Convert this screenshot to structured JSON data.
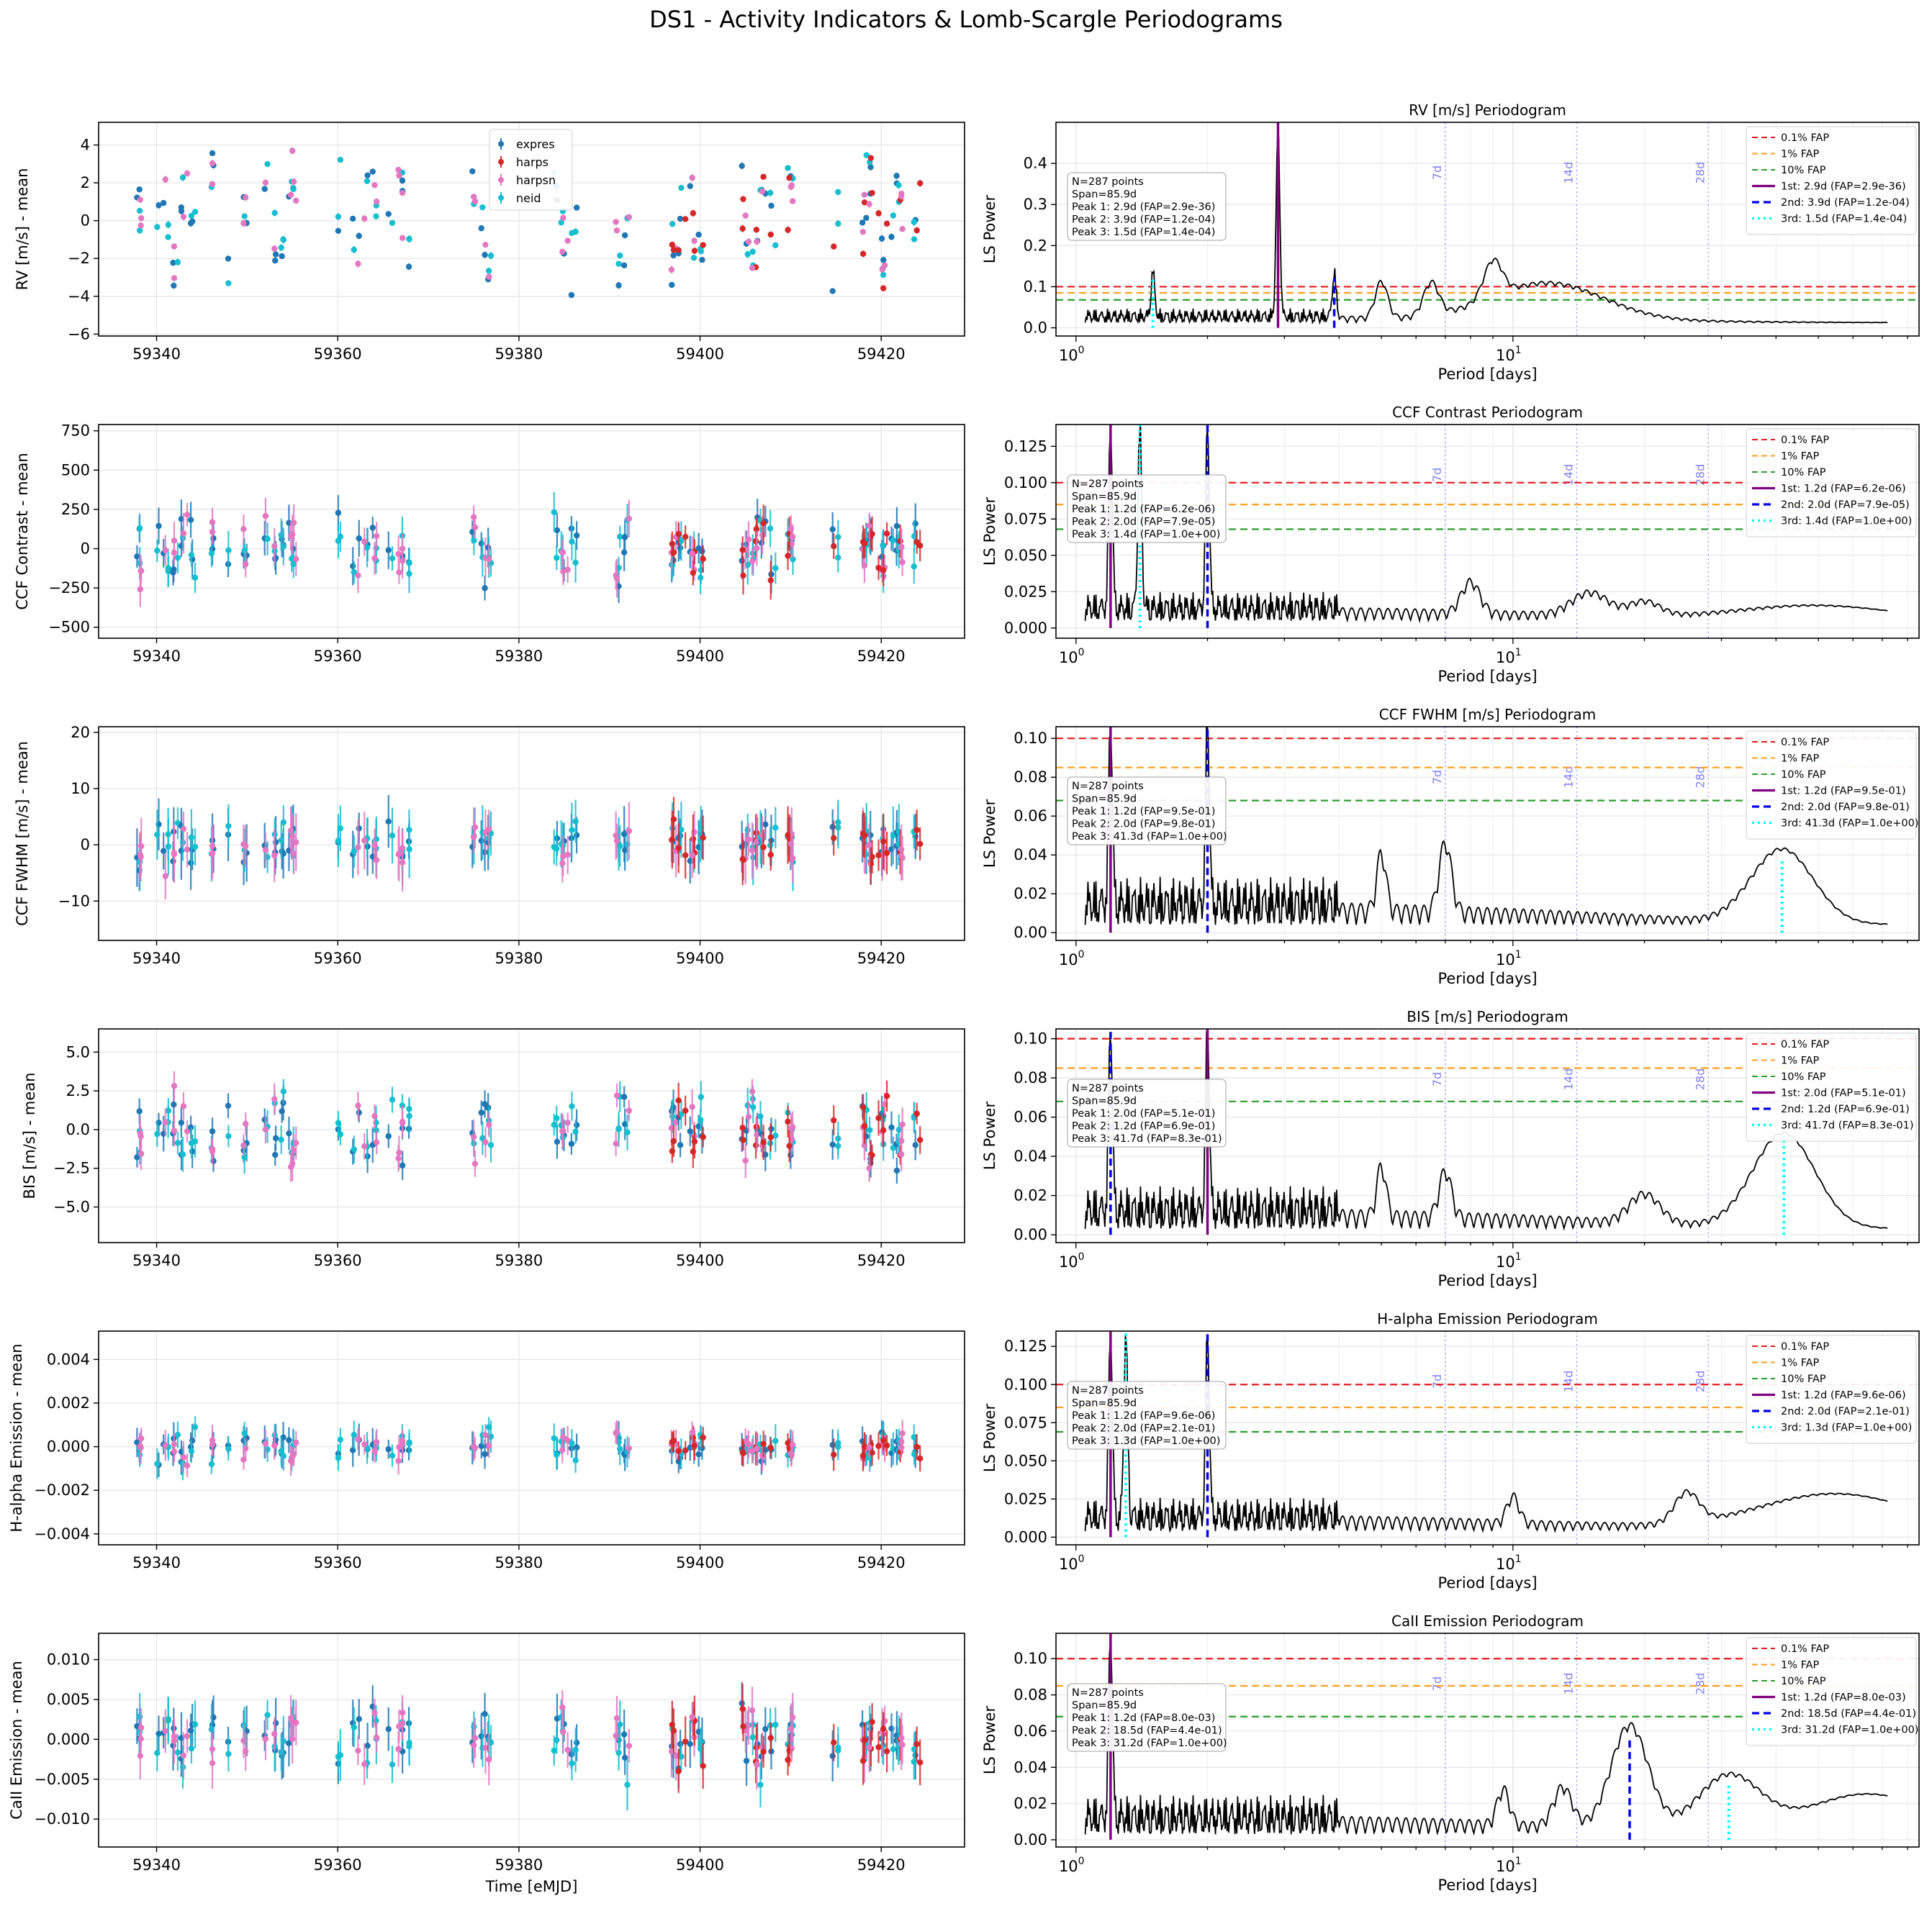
{
  "figure": {
    "title": "DS1 - Activity Indicators & Lomb-Scargle Periodograms"
  },
  "colors": {
    "expres": "#1f77b4",
    "harps": "#d62728",
    "harpsn": "#e377c2",
    "neid": "#17becf",
    "fap01": "#e41a1c",
    "fap1": "#ff9f1c",
    "fap10": "#2a9d2a",
    "peak1": "#800080",
    "peak2": "#0000ee",
    "peak3": "#00ffff",
    "harm": "#8080ff"
  },
  "time_axis": {
    "xlabel": "Time [eMJD]",
    "xlim": [
      59333.6,
      59429.2
    ],
    "ticks": [
      59340,
      59360,
      59380,
      59400,
      59420
    ],
    "tick_labels": [
      "59340",
      "59360",
      "59380",
      "59400",
      "59420"
    ]
  },
  "legend": {
    "entries": [
      {
        "label": "expres",
        "color_key": "expres"
      },
      {
        "label": "harps",
        "color_key": "harps"
      },
      {
        "label": "harpsn",
        "color_key": "harpsn"
      },
      {
        "label": "neid",
        "color_key": "neid"
      }
    ]
  },
  "periodogram_axis": {
    "xlabel": "Period [days]",
    "ylabel": "LS Power",
    "xlim": [
      0.9,
      85.0
    ],
    "scale": "log",
    "tick_labels": [
      "10^0",
      "10^1"
    ],
    "tick_text": {
      "base": "10",
      "exps": [
        "0",
        "1"
      ]
    },
    "harmonics": [
      7,
      14,
      28
    ],
    "harmonic_labels": [
      "7d",
      "14d",
      "28d"
    ]
  },
  "fap_labels": [
    "0.1% FAP",
    "1% FAP",
    "10% FAP"
  ],
  "chart_data": [
    {
      "type": "scatter",
      "ylabel": "RV [m/s] - mean",
      "ylim": [
        -6.1,
        5.2
      ],
      "yticks": [
        -6,
        -4,
        -2,
        0,
        2,
        4
      ],
      "ytick_labels": [
        "−6",
        "−4",
        "−2",
        "0",
        "2",
        "4"
      ],
      "amp": 2.2,
      "err": 0.15,
      "has_legend": true
    },
    {
      "type": "scatter",
      "ylabel": "CCF Contrast - mean",
      "ylim": [
        -570,
        790
      ],
      "yticks": [
        -500,
        -250,
        0,
        250,
        500,
        750
      ],
      "ytick_labels": [
        "−500",
        "−250",
        "0",
        "250",
        "500",
        "750"
      ],
      "amp": 150,
      "err": 100,
      "has_legend": false
    },
    {
      "type": "scatter",
      "ylabel": "CCF FWHM [m/s] - mean",
      "ylim": [
        -17,
        21
      ],
      "yticks": [
        -10,
        0,
        10,
        20
      ],
      "ytick_labels": [
        "−10",
        "0",
        "10",
        "20"
      ],
      "amp": 3,
      "err": 4,
      "has_legend": false
    },
    {
      "type": "scatter",
      "ylabel": "BIS [m/s] - mean",
      "ylim": [
        -7.3,
        6.5
      ],
      "yticks": [
        -5.0,
        -2.5,
        0.0,
        2.5,
        5.0
      ],
      "ytick_labels": [
        "−5.0",
        "−2.5",
        "0.0",
        "2.5",
        "5.0"
      ],
      "amp": 1.8,
      "err": 0.9,
      "has_legend": false
    },
    {
      "type": "scatter",
      "ylabel": "H-alpha Emission - mean",
      "ylim": [
        -0.0045,
        0.0053
      ],
      "yticks": [
        -0.004,
        -0.002,
        0.0,
        0.002,
        0.004
      ],
      "ytick_labels": [
        "−0.004",
        "−0.002",
        "0.000",
        "0.002",
        "0.004"
      ],
      "amp": 0.0005,
      "err": 0.0006,
      "has_legend": false
    },
    {
      "type": "scatter",
      "ylabel": "CaII Emission - mean",
      "ylim": [
        -0.0135,
        0.0133
      ],
      "yticks": [
        -0.01,
        -0.005,
        0.0,
        0.005,
        0.01
      ],
      "ytick_labels": [
        "−0.010",
        "−0.005",
        "0.000",
        "0.005",
        "0.010"
      ],
      "amp": 0.003,
      "err": 0.0025,
      "has_legend": false
    }
  ],
  "periodograms": [
    {
      "type": "line",
      "title": "RV [m/s] Periodogram",
      "ylim": [
        -0.02,
        0.5
      ],
      "yticks": [
        0.0,
        0.1,
        0.2,
        0.3,
        0.4
      ],
      "ytick_labels": [
        "0.0",
        "0.1",
        "0.2",
        "0.3",
        "0.4"
      ],
      "fap": [
        0.1,
        0.085,
        0.068
      ],
      "peaks": [
        {
          "period": 2.9,
          "power": 0.5
        },
        {
          "period": 3.9,
          "power": 0.12
        },
        {
          "period": 1.5,
          "power": 0.12
        }
      ],
      "info": [
        "N=287 points",
        "Span=85.9d",
        "Peak 1: 2.9d (FAP=2.9e-36)",
        "Peak 2: 3.9d (FAP=1.2e-04)",
        "Peak 3: 1.5d (FAP=1.4e-04)"
      ],
      "legend_peaks": [
        "1st: 2.9d (FAP=2.9e-36)",
        "2nd: 3.9d (FAP=1.2e-04)",
        "3rd: 1.5d (FAP=1.4e-04)"
      ],
      "base": 0.025,
      "noise": 0.035,
      "bumps": [
        {
          "period": 12.0,
          "power": 0.09,
          "width": 0.18
        },
        {
          "period": 9.0,
          "power": 0.09,
          "width": 0.03
        },
        {
          "period": 6.5,
          "power": 0.08,
          "width": 0.025
        },
        {
          "period": 5.0,
          "power": 0.09,
          "width": 0.02
        }
      ]
    },
    {
      "type": "line",
      "title": "CCF Contrast Periodogram",
      "ylim": [
        -0.007,
        0.14
      ],
      "yticks": [
        0.0,
        0.025,
        0.05,
        0.075,
        0.1,
        0.125
      ],
      "ytick_labels": [
        "0.000",
        "0.025",
        "0.050",
        "0.075",
        "0.100",
        "0.125"
      ],
      "fap": [
        0.1,
        0.085,
        0.068
      ],
      "peaks": [
        {
          "period": 1.2,
          "power": 0.14
        },
        {
          "period": 2.0,
          "power": 0.14
        },
        {
          "period": 1.4,
          "power": 0.14
        }
      ],
      "info": [
        "N=287 points",
        "Span=85.9d",
        "Peak 1: 1.2d (FAP=6.2e-06)",
        "Peak 2: 2.0d (FAP=7.9e-05)",
        "Peak 3: 1.4d (FAP=1.0e+00)"
      ],
      "legend_peaks": [
        "1st: 1.2d (FAP=6.2e-06)",
        "2nd: 2.0d (FAP=7.9e-05)",
        "3rd: 1.4d (FAP=1.0e+00)"
      ],
      "base": 0.01,
      "noise": 0.02,
      "bumps": [
        {
          "period": 8.0,
          "power": 0.022,
          "width": 0.03
        },
        {
          "period": 15.0,
          "power": 0.016,
          "width": 0.06
        },
        {
          "period": 20.0,
          "power": 0.01,
          "width": 0.05
        },
        {
          "period": 50.0,
          "power": 0.01,
          "width": 0.25
        }
      ]
    },
    {
      "type": "line",
      "title": "CCF FWHM [m/s] Periodogram",
      "ylim": [
        -0.004,
        0.106
      ],
      "yticks": [
        0.0,
        0.02,
        0.04,
        0.06,
        0.08,
        0.1
      ],
      "ytick_labels": [
        "0.00",
        "0.02",
        "0.04",
        "0.06",
        "0.08",
        "0.10"
      ],
      "fap": [
        0.1,
        0.085,
        0.068
      ],
      "peaks": [
        {
          "period": 1.2,
          "power": 0.106
        },
        {
          "period": 2.0,
          "power": 0.106
        },
        {
          "period": 41.3,
          "power": 0.038
        }
      ],
      "info": [
        "N=287 points",
        "Span=85.9d",
        "Peak 1: 1.2d (FAP=9.5e-01)",
        "Peak 2: 2.0d (FAP=9.8e-01)",
        "Peak 3: 41.3d (FAP=1.0e+00)"
      ],
      "legend_peaks": [
        "1st: 1.2d (FAP=9.5e-01)",
        "2nd: 2.0d (FAP=9.8e-01)",
        "3rd: 41.3d (FAP=1.0e+00)"
      ],
      "base": 0.008,
      "noise": 0.025,
      "bumps": [
        {
          "period": 41.3,
          "power": 0.038,
          "width": 0.1
        },
        {
          "period": 7.0,
          "power": 0.036,
          "width": 0.02
        },
        {
          "period": 5.0,
          "power": 0.03,
          "width": 0.015
        }
      ]
    },
    {
      "type": "line",
      "title": "BIS [m/s] Periodogram",
      "ylim": [
        -0.004,
        0.105
      ],
      "yticks": [
        0.0,
        0.02,
        0.04,
        0.06,
        0.08,
        0.1
      ],
      "ytick_labels": [
        "0.00",
        "0.02",
        "0.04",
        "0.06",
        "0.08",
        "0.10"
      ],
      "fap": [
        0.1,
        0.085,
        0.068
      ],
      "peaks": [
        {
          "period": 2.0,
          "power": 0.105
        },
        {
          "period": 1.2,
          "power": 0.105
        },
        {
          "period": 41.7,
          "power": 0.048
        }
      ],
      "info": [
        "N=287 points",
        "Span=85.9d",
        "Peak 1: 2.0d (FAP=5.1e-01)",
        "Peak 2: 1.2d (FAP=6.9e-01)",
        "Peak 3: 41.7d (FAP=8.3e-01)"
      ],
      "legend_peaks": [
        "1st: 2.0d (FAP=5.1e-01)",
        "2nd: 1.2d (FAP=6.9e-01)",
        "3rd: 41.7d (FAP=8.3e-01)"
      ],
      "base": 0.006,
      "noise": 0.022,
      "bumps": [
        {
          "period": 41.7,
          "power": 0.048,
          "width": 0.1
        },
        {
          "period": 5.0,
          "power": 0.026,
          "width": 0.015
        },
        {
          "period": 7.0,
          "power": 0.024,
          "width": 0.02
        },
        {
          "period": 20.0,
          "power": 0.015,
          "width": 0.05
        }
      ]
    },
    {
      "type": "line",
      "title": "H-alpha Emission Periodogram",
      "ylim": [
        -0.005,
        0.135
      ],
      "yticks": [
        0.0,
        0.025,
        0.05,
        0.075,
        0.1,
        0.125
      ],
      "ytick_labels": [
        "0.000",
        "0.025",
        "0.050",
        "0.075",
        "0.100",
        "0.125"
      ],
      "fap": [
        0.1,
        0.085,
        0.069
      ],
      "peaks": [
        {
          "period": 1.2,
          "power": 0.135
        },
        {
          "period": 2.0,
          "power": 0.135
        },
        {
          "period": 1.3,
          "power": 0.135
        }
      ],
      "info": [
        "N=287 points",
        "Span=85.9d",
        "Peak 1: 1.2d (FAP=9.6e-06)",
        "Peak 2: 2.0d (FAP=2.1e-01)",
        "Peak 3: 1.3d (FAP=1.0e+00)"
      ],
      "legend_peaks": [
        "1st: 1.2d (FAP=9.6e-06)",
        "2nd: 2.0d (FAP=2.1e-01)",
        "3rd: 1.3d (FAP=1.0e+00)"
      ],
      "base": 0.008,
      "noise": 0.022,
      "bumps": [
        {
          "period": 55.0,
          "power": 0.024,
          "width": 0.25
        },
        {
          "period": 25.0,
          "power": 0.02,
          "width": 0.04
        },
        {
          "period": 10.0,
          "power": 0.018,
          "width": 0.02
        }
      ]
    },
    {
      "type": "line",
      "title": "CaII Emission Periodogram",
      "ylim": [
        -0.004,
        0.114
      ],
      "yticks": [
        0.0,
        0.02,
        0.04,
        0.06,
        0.08,
        0.1
      ],
      "ytick_labels": [
        "0.00",
        "0.02",
        "0.04",
        "0.06",
        "0.08",
        "0.10"
      ],
      "fap": [
        0.1,
        0.085,
        0.068
      ],
      "peaks": [
        {
          "period": 1.2,
          "power": 0.114
        },
        {
          "period": 18.5,
          "power": 0.057
        },
        {
          "period": 31.2,
          "power": 0.03
        }
      ],
      "info": [
        "N=287 points",
        "Span=85.9d",
        "Peak 1: 1.2d (FAP=8.0e-03)",
        "Peak 2: 18.5d (FAP=4.4e-01)",
        "Peak 3: 31.2d (FAP=1.0e+00)"
      ],
      "legend_peaks": [
        "1st: 1.2d (FAP=8.0e-03)",
        "2nd: 18.5d (FAP=4.4e-01)",
        "3rd: 31.2d (FAP=1.0e+00)"
      ],
      "base": 0.006,
      "noise": 0.022,
      "bumps": [
        {
          "period": 18.5,
          "power": 0.057,
          "width": 0.06
        },
        {
          "period": 31.2,
          "power": 0.03,
          "width": 0.1
        },
        {
          "period": 65.0,
          "power": 0.022,
          "width": 0.2
        },
        {
          "period": 13.0,
          "power": 0.022,
          "width": 0.03
        },
        {
          "period": 9.5,
          "power": 0.02,
          "width": 0.02
        }
      ]
    }
  ]
}
